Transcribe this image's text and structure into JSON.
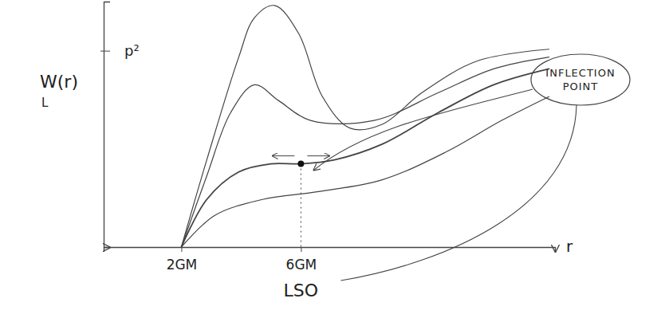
{
  "chart_data": {
    "type": "line",
    "color": "#444444",
    "y_label": "W(r)",
    "y_label_subscript": "L",
    "x_label": "r",
    "xlim": [
      -0.6,
      14.5
    ],
    "ylim": [
      0,
      10
    ],
    "xticks": [
      {
        "value": 2,
        "label": "2GM"
      },
      {
        "value": 6,
        "label": "6GM"
      }
    ],
    "yticks": [
      {
        "value": 8,
        "label": "p²"
      }
    ],
    "series": [
      {
        "x": [
          2,
          2.85,
          3.92,
          4.45,
          5.12,
          5.92,
          6.72,
          7.65,
          8.72,
          10.05,
          11.9,
          14.3
        ],
        "values": [
          0,
          3.55,
          7.74,
          9.35,
          9.84,
          8.71,
          6.13,
          4.84,
          5.0,
          6.29,
          7.58,
          8.06
        ]
      },
      {
        "x": [
          2,
          2.85,
          3.65,
          4.45,
          5.25,
          6.32,
          8.45,
          10.6,
          12.45,
          14.3
        ],
        "values": [
          0,
          2.9,
          5.48,
          6.61,
          5.97,
          5.16,
          5.16,
          6.29,
          7.26,
          7.74
        ]
      },
      {
        "x": [
          2,
          2.85,
          3.92,
          4.99,
          6,
          7.12,
          8.72,
          10.6,
          12.45,
          14.3
        ],
        "values": [
          0,
          1.94,
          3.06,
          3.39,
          3.39,
          3.55,
          4.19,
          5.48,
          6.61,
          7.26
        ]
      },
      {
        "x": [
          2,
          3.12,
          4.72,
          6.59,
          8.72,
          10.85,
          12.72,
          14.3
        ],
        "values": [
          0,
          1.29,
          1.94,
          2.26,
          2.74,
          3.87,
          5.16,
          6.13
        ]
      }
    ],
    "inflection_point": {
      "x": 6,
      "y": 3.39
    },
    "annotations": [
      "INFLECTION POINT",
      "LSO"
    ]
  }
}
